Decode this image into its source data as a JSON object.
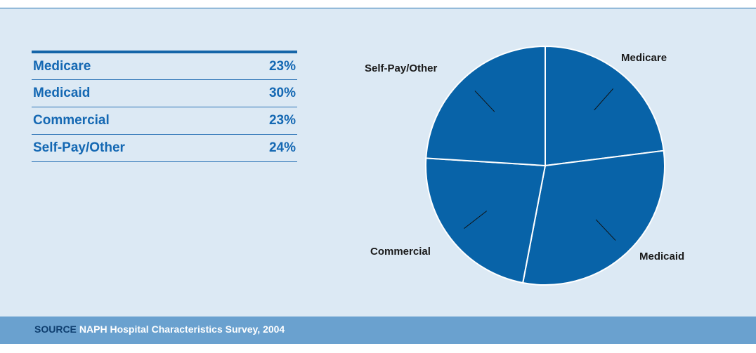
{
  "chart_data": {
    "type": "pie",
    "categories": [
      "Medicare",
      "Medicaid",
      "Commercial",
      "Self-Pay/Other"
    ],
    "values": [
      23,
      30,
      23,
      24
    ],
    "unit": "%",
    "color": "#0863a8"
  },
  "table": {
    "rows": [
      {
        "label": "Medicare",
        "value": "23%"
      },
      {
        "label": "Medicaid",
        "value": "30%"
      },
      {
        "label": "Commercial",
        "value": "23%"
      },
      {
        "label": "Self-Pay/Other",
        "value": "24%"
      }
    ]
  },
  "source": {
    "label": "SOURCE",
    "text": "NAPH Hospital Characteristics Survey, 2004"
  }
}
